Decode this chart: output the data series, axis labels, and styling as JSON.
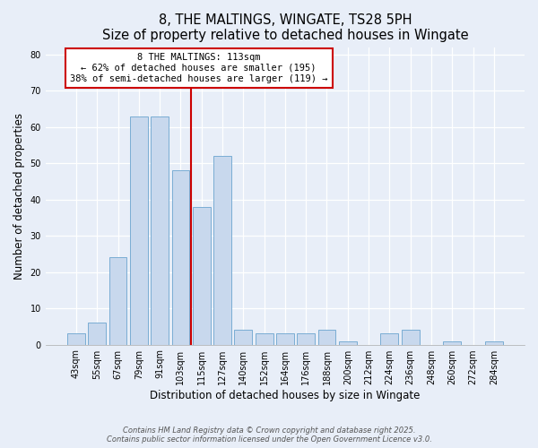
{
  "title": "8, THE MALTINGS, WINGATE, TS28 5PH",
  "subtitle": "Size of property relative to detached houses in Wingate",
  "xlabel": "Distribution of detached houses by size in Wingate",
  "ylabel": "Number of detached properties",
  "bar_labels": [
    "43sqm",
    "55sqm",
    "67sqm",
    "79sqm",
    "91sqm",
    "103sqm",
    "115sqm",
    "127sqm",
    "140sqm",
    "152sqm",
    "164sqm",
    "176sqm",
    "188sqm",
    "200sqm",
    "212sqm",
    "224sqm",
    "236sqm",
    "248sqm",
    "260sqm",
    "272sqm",
    "284sqm"
  ],
  "bar_values": [
    3,
    6,
    24,
    63,
    63,
    48,
    38,
    52,
    4,
    3,
    3,
    3,
    4,
    1,
    0,
    3,
    4,
    0,
    1,
    0,
    1
  ],
  "bar_color": "#c8d8ed",
  "bar_edge_color": "#7aadd4",
  "background_color": "#e8eef8",
  "plot_bg_color": "#e8eef8",
  "grid_color": "#ffffff",
  "vline_x": 5.5,
  "vline_color": "#cc0000",
  "annotation_title": "8 THE MALTINGS: 113sqm",
  "annotation_line1": "← 62% of detached houses are smaller (195)",
  "annotation_line2": "38% of semi-detached houses are larger (119) →",
  "annotation_box_color": "#ffffff",
  "annotation_box_edge": "#cc0000",
  "ylim": [
    0,
    82
  ],
  "yticks": [
    0,
    10,
    20,
    30,
    40,
    50,
    60,
    70,
    80
  ],
  "footnote1": "Contains HM Land Registry data © Crown copyright and database right 2025.",
  "footnote2": "Contains public sector information licensed under the Open Government Licence v3.0.",
  "title_fontsize": 10.5,
  "subtitle_fontsize": 9.5,
  "axis_label_fontsize": 8.5,
  "tick_fontsize": 7,
  "annotation_fontsize": 7.5,
  "footnote_fontsize": 6
}
